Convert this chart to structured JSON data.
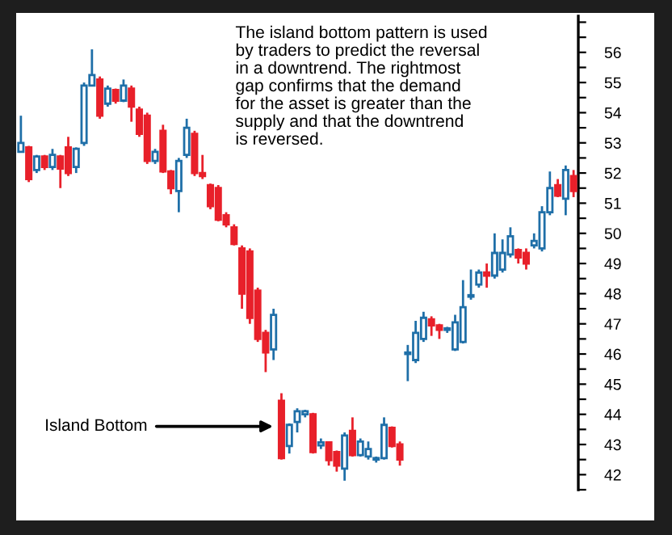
{
  "chart_data": {
    "type": "candlestick",
    "categories": [
      null,
      null,
      null,
      null,
      null,
      null,
      null,
      null,
      null,
      null,
      null,
      null,
      null,
      null,
      null,
      null,
      null,
      null,
      null,
      null,
      null,
      null,
      null,
      null,
      null,
      null,
      null,
      null,
      null,
      null,
      null,
      null,
      null,
      null,
      null,
      null,
      null,
      null,
      null,
      null,
      null,
      null,
      null,
      null,
      null,
      null,
      null,
      null,
      null,
      null,
      null,
      null,
      null,
      null,
      null,
      null,
      null,
      null,
      null,
      null,
      null,
      null,
      null,
      null,
      null,
      null,
      null,
      null,
      null,
      null,
      null
    ],
    "ohlc": [
      [
        52.7,
        53.9,
        52.7,
        53.0
      ],
      [
        52.85,
        52.9,
        51.7,
        51.8
      ],
      [
        52.1,
        52.6,
        52.0,
        52.55
      ],
      [
        52.55,
        52.6,
        52.1,
        52.2
      ],
      [
        52.2,
        52.8,
        52.1,
        52.6
      ],
      [
        52.55,
        52.6,
        51.5,
        52.15
      ],
      [
        52.85,
        53.2,
        51.9,
        52.0
      ],
      [
        52.2,
        52.85,
        52.0,
        52.8
      ],
      [
        53.0,
        55.0,
        52.9,
        54.9
      ],
      [
        54.9,
        56.1,
        54.9,
        55.25
      ],
      [
        55.1,
        55.2,
        53.8,
        53.9
      ],
      [
        54.3,
        54.9,
        54.2,
        54.8
      ],
      [
        54.75,
        54.8,
        54.3,
        54.4
      ],
      [
        54.4,
        55.1,
        54.35,
        54.9
      ],
      [
        54.8,
        54.9,
        53.7,
        54.2
      ],
      [
        54.1,
        54.2,
        53.2,
        53.3
      ],
      [
        53.9,
        54.0,
        52.3,
        52.4
      ],
      [
        52.4,
        52.8,
        52.3,
        52.7
      ],
      [
        53.4,
        53.6,
        52.0,
        52.05
      ],
      [
        52.05,
        52.1,
        51.3,
        51.5
      ],
      [
        51.4,
        52.5,
        50.7,
        52.4
      ],
      [
        52.6,
        53.8,
        52.5,
        53.5
      ],
      [
        53.3,
        53.4,
        51.9,
        52.0
      ],
      [
        52.0,
        52.6,
        51.8,
        51.9
      ],
      [
        51.6,
        51.65,
        50.8,
        50.9
      ],
      [
        51.5,
        51.6,
        50.4,
        50.45
      ],
      [
        50.6,
        50.7,
        50.2,
        50.3
      ],
      [
        50.2,
        50.3,
        49.6,
        49.65
      ],
      [
        49.5,
        49.6,
        47.5,
        48.0
      ],
      [
        49.4,
        49.5,
        47.0,
        47.2
      ],
      [
        48.1,
        48.2,
        46.4,
        46.5
      ],
      [
        46.7,
        46.8,
        45.4,
        46.05
      ],
      [
        46.15,
        47.5,
        45.8,
        47.3
      ],
      [
        44.45,
        44.7,
        42.5,
        42.55
      ],
      [
        42.95,
        43.7,
        42.7,
        43.65
      ],
      [
        43.75,
        44.2,
        43.4,
        44.1
      ],
      [
        44.0,
        44.15,
        43.9,
        44.1
      ],
      [
        44.0,
        44.05,
        42.7,
        42.75
      ],
      [
        42.97,
        43.2,
        42.85,
        43.07
      ],
      [
        43.07,
        43.1,
        42.3,
        42.48
      ],
      [
        42.75,
        42.8,
        42.1,
        42.3
      ],
      [
        42.2,
        43.4,
        41.8,
        43.3
      ],
      [
        43.45,
        43.9,
        42.6,
        42.65
      ],
      [
        42.65,
        43.2,
        42.6,
        43.1
      ],
      [
        42.6,
        43.1,
        42.5,
        42.85
      ],
      [
        42.5,
        42.6,
        42.4,
        42.55
      ],
      [
        42.55,
        43.9,
        42.5,
        43.65
      ],
      [
        43.55,
        43.6,
        42.9,
        42.95
      ],
      [
        43.0,
        43.1,
        42.3,
        42.5
      ],
      [
        46.0,
        46.3,
        45.1,
        46.05
      ],
      [
        45.8,
        47.1,
        45.7,
        46.7
      ],
      [
        46.5,
        47.4,
        46.4,
        47.2
      ],
      [
        47.15,
        47.25,
        46.6,
        46.95
      ],
      [
        46.95,
        47.0,
        46.5,
        46.8
      ],
      [
        46.8,
        46.9,
        46.7,
        46.85
      ],
      [
        46.15,
        47.3,
        46.1,
        47.05
      ],
      [
        46.4,
        48.45,
        46.35,
        47.55
      ],
      [
        47.9,
        48.8,
        47.8,
        47.95
      ],
      [
        48.3,
        48.8,
        48.2,
        48.7
      ],
      [
        48.7,
        49.0,
        48.2,
        48.6
      ],
      [
        48.6,
        50.0,
        48.5,
        49.35
      ],
      [
        48.8,
        49.8,
        48.7,
        49.35
      ],
      [
        49.3,
        50.2,
        49.2,
        49.9
      ],
      [
        49.45,
        49.5,
        49.0,
        49.2
      ],
      [
        49.35,
        49.5,
        48.8,
        49.0
      ],
      [
        49.6,
        50.0,
        49.5,
        49.75
      ],
      [
        49.5,
        50.9,
        49.4,
        50.7
      ],
      [
        50.7,
        52.05,
        50.6,
        51.5
      ],
      [
        51.6,
        51.8,
        51.2,
        51.25
      ],
      [
        51.15,
        52.25,
        50.6,
        52.1
      ],
      [
        51.9,
        52.1,
        51.2,
        51.4
      ]
    ],
    "colors": [
      "#1f6fa8",
      "#e8202a",
      "#1f6fa8",
      "#e8202a",
      "#1f6fa8",
      "#e8202a",
      "#e8202a",
      "#1f6fa8",
      "#1f6fa8",
      "#1f6fa8",
      "#e8202a",
      "#1f6fa8",
      "#e8202a",
      "#1f6fa8",
      "#e8202a",
      "#e8202a",
      "#e8202a",
      "#1f6fa8",
      "#e8202a",
      "#e8202a",
      "#1f6fa8",
      "#1f6fa8",
      "#e8202a",
      "#e8202a",
      "#e8202a",
      "#e8202a",
      "#e8202a",
      "#e8202a",
      "#e8202a",
      "#e8202a",
      "#e8202a",
      "#e8202a",
      "#1f6fa8",
      "#e8202a",
      "#1f6fa8",
      "#1f6fa8",
      "#1f6fa8",
      "#e8202a",
      "#1f6fa8",
      "#e8202a",
      "#e8202a",
      "#1f6fa8",
      "#e8202a",
      "#1f6fa8",
      "#1f6fa8",
      "#1f6fa8",
      "#1f6fa8",
      "#e8202a",
      "#e8202a",
      "#1f6fa8",
      "#1f6fa8",
      "#1f6fa8",
      "#e8202a",
      "#e8202a",
      "#1f6fa8",
      "#1f6fa8",
      "#1f6fa8",
      "#1f6fa8",
      "#1f6fa8",
      "#e8202a",
      "#1f6fa8",
      "#1f6fa8",
      "#1f6fa8",
      "#e8202a",
      "#e8202a",
      "#1f6fa8",
      "#1f6fa8",
      "#1f6fa8",
      "#e8202a",
      "#1f6fa8",
      "#e8202a"
    ],
    "ylim": [
      41.5,
      57.2
    ],
    "yticks": [
      {
        "value": 41.5,
        "label": null
      },
      42,
      {
        "value": 42.5,
        "label": null
      },
      43,
      {
        "value": 43.5,
        "label": null
      },
      44,
      {
        "value": 44.5,
        "label": null
      },
      45,
      {
        "value": 45.5,
        "label": null
      },
      46,
      {
        "value": 46.5,
        "label": null
      },
      47,
      {
        "value": 47.5,
        "label": null
      },
      48,
      {
        "value": 48.5,
        "label": null
      },
      49,
      {
        "value": 49.5,
        "label": null
      },
      50,
      {
        "value": 50.5,
        "label": null
      },
      51,
      {
        "value": 51.5,
        "label": null
      },
      52,
      {
        "value": 52.5,
        "label": null
      },
      53,
      {
        "value": 53.5,
        "label": null
      },
      54,
      {
        "value": 54.5,
        "label": null
      },
      55,
      {
        "value": 55.5,
        "label": null
      },
      56,
      {
        "value": 56.5,
        "label": null
      },
      {
        "value": 57,
        "label": null
      }
    ],
    "tick_labels": "y",
    "grid": false,
    "annotations": [
      "The island bottom pattern is used\nby traders to predict the reversal\nin a downtrend. The rightmost\ngap confirms that the demand\nfor the asset is greater than the\nsupply and that the downtrend\nis reversed.",
      "Island Bottom"
    ]
  }
}
